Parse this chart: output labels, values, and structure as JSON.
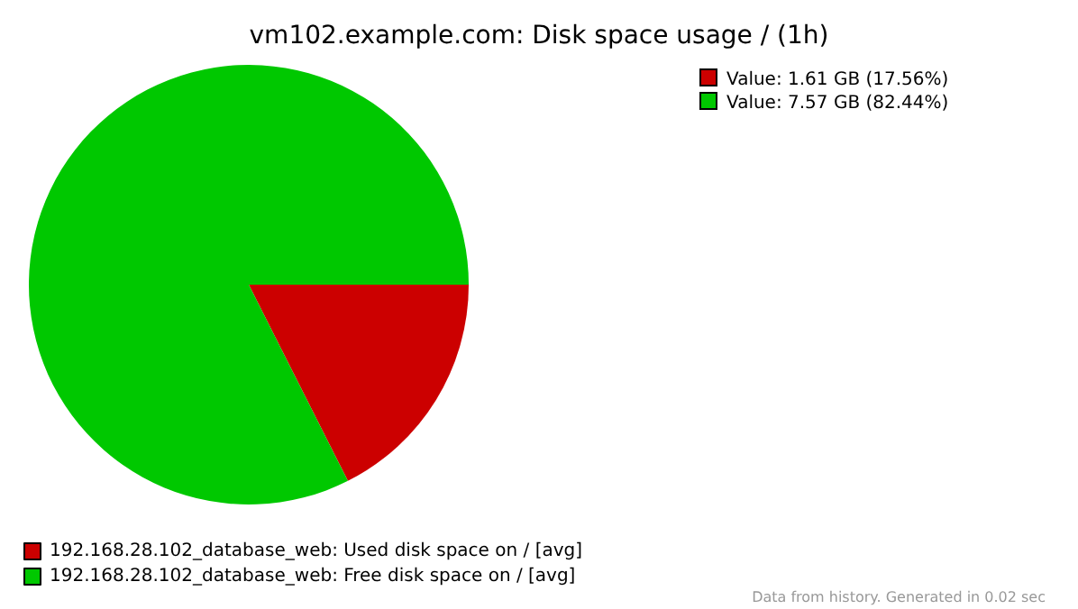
{
  "chart_data": {
    "type": "pie",
    "title": "vm102.example.com: Disk space usage / (1h)",
    "categories": [
      "192.168.28.102_database_web: Used disk space on / [avg]",
      "192.168.28.102_database_web: Free disk space on / [avg]"
    ],
    "values": [
      17.56,
      82.44
    ],
    "colors": [
      "#cc0000",
      "#00c800"
    ],
    "legend": "bottom",
    "annotations": [
      "Value: 1.61 GB (17.56%)",
      "Value: 7.57 GB (82.44%)",
      "Data from history. Generated in 0.02 sec"
    ]
  }
}
